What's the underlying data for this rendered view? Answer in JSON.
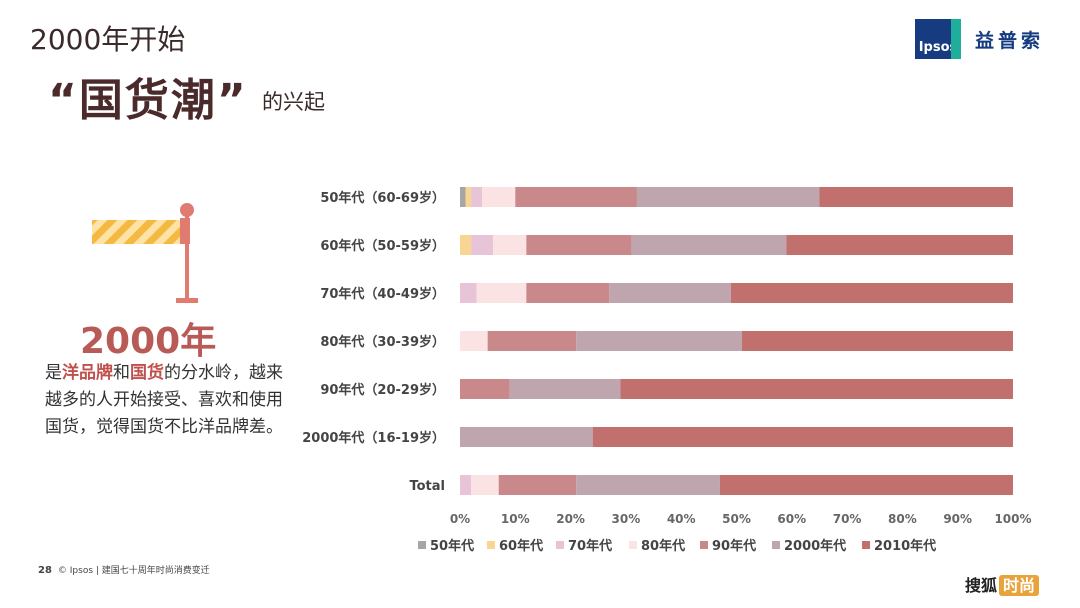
{
  "header": {
    "line1": "2000年开始",
    "big_title": "“国货潮”",
    "title_tail": "的兴起"
  },
  "brand": {
    "logo_mark": "Ipsos",
    "logo_cn": "益普索"
  },
  "left_panel": {
    "year": "2000年",
    "desc_parts": [
      "是",
      "洋品牌",
      "和",
      "国货",
      "的分水岭，越来越多的人开始接受、喜欢和使用国货，觉得国货不比洋品牌差。"
    ]
  },
  "footer": {
    "page_number": "28",
    "text": "© Ipsos | 建国七十周年时尚消费变迁"
  },
  "watermark": {
    "text": "搜狐",
    "tag": "时尚"
  },
  "chart_data": {
    "type": "bar",
    "orientation": "horizontal",
    "stacked": "percent",
    "categories": [
      "50年代（60-69岁）",
      "60年代（50-59岁）",
      "70年代（40-49岁）",
      "80年代（30-39岁）",
      "90年代（20-29岁）",
      "2000年代（16-19岁）",
      "Total"
    ],
    "series": [
      {
        "name": "50年代",
        "color": "#a6a6a6",
        "values": [
          1,
          0,
          0,
          0,
          0,
          0,
          0
        ]
      },
      {
        "name": "60年代",
        "color": "#f9d593",
        "values": [
          1,
          2,
          0,
          0,
          0,
          0,
          0
        ]
      },
      {
        "name": "70年代",
        "color": "#e8c4d8",
        "values": [
          2,
          4,
          3,
          0,
          0,
          0,
          2
        ]
      },
      {
        "name": "80年代",
        "color": "#fbe3e3",
        "values": [
          6,
          6,
          9,
          5,
          0,
          0,
          5
        ]
      },
      {
        "name": "90年代",
        "color": "#c9898a",
        "values": [
          22,
          19,
          15,
          16,
          9,
          0,
          14
        ]
      },
      {
        "name": "2000年代",
        "color": "#bfa5ae",
        "values": [
          33,
          28,
          22,
          30,
          20,
          24,
          26
        ]
      },
      {
        "name": "2010年代",
        "color": "#c1706d",
        "values": [
          35,
          41,
          51,
          49,
          71,
          76,
          53
        ]
      }
    ],
    "xticks": [
      "0%",
      "10%",
      "20%",
      "30%",
      "40%",
      "50%",
      "60%",
      "70%",
      "80%",
      "90%",
      "100%"
    ],
    "xlim": [
      0,
      100
    ],
    "legend_position": "bottom",
    "grid": false
  }
}
